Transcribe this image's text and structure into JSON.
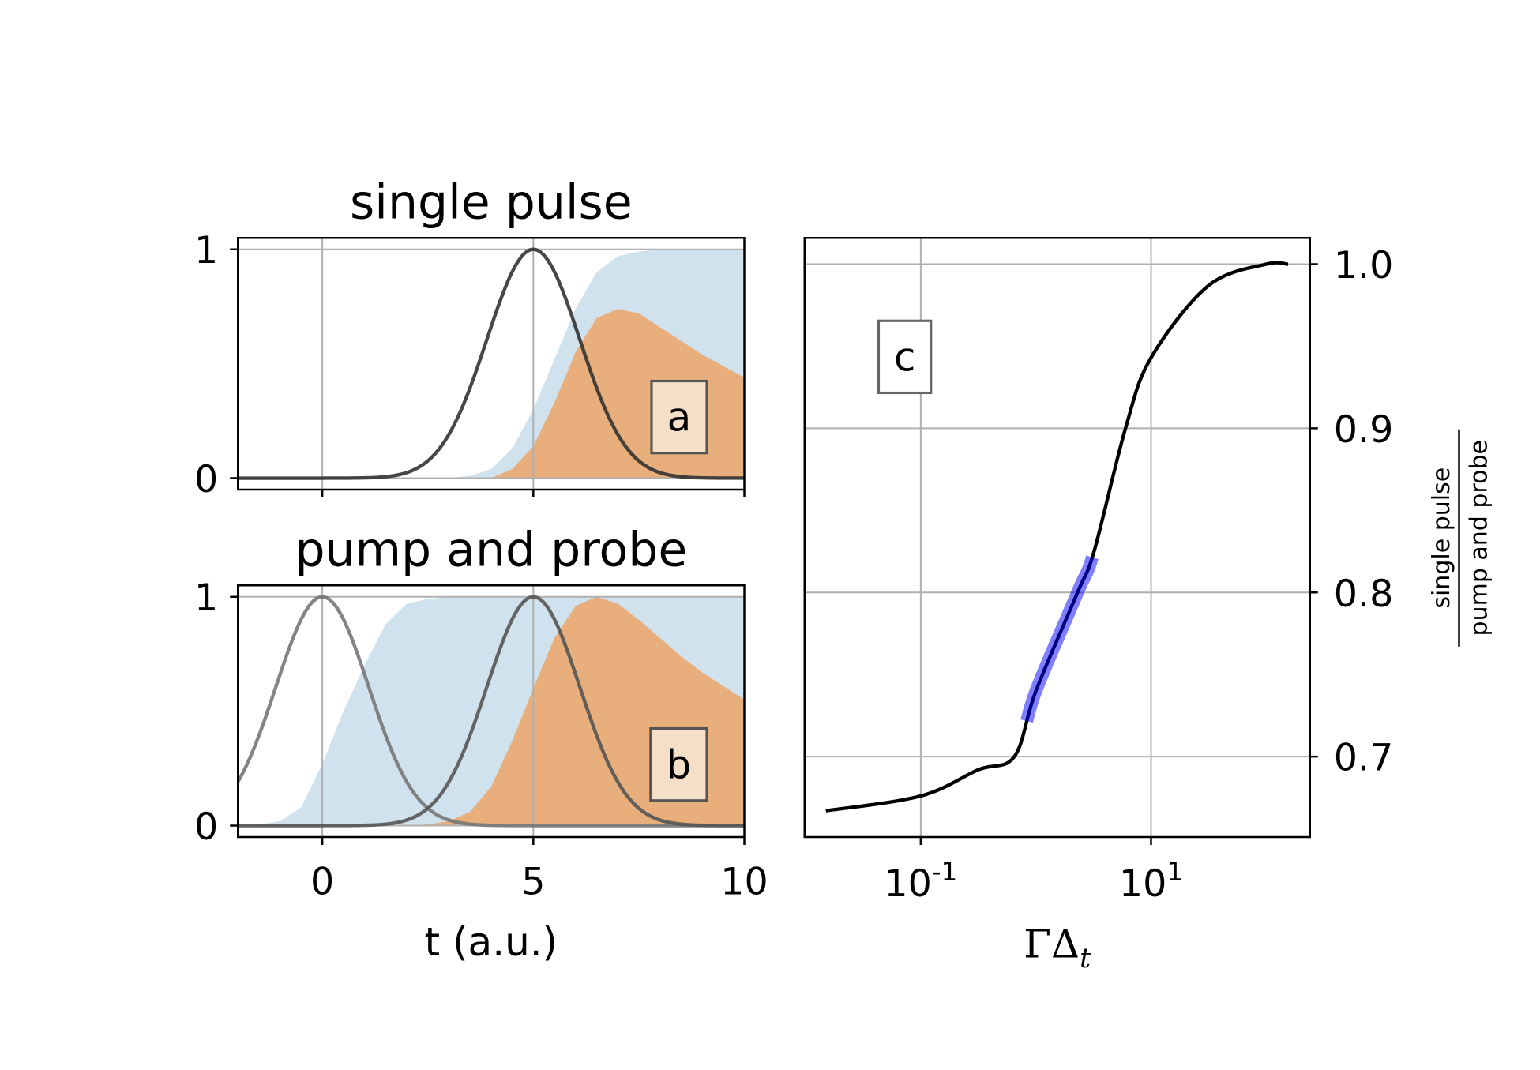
{
  "chart_data": [
    {
      "panel": "a",
      "type": "area",
      "title": "single pulse",
      "xlabel": "",
      "xlim": [
        -2,
        10
      ],
      "ylim": [
        -0.05,
        1.05
      ],
      "xticks": [
        "0",
        "5",
        "10"
      ],
      "xtick_values": [
        0,
        5,
        10
      ],
      "show_xticklabels": false,
      "yticks": [
        "0",
        "1"
      ],
      "ytick_values": [
        0,
        1
      ],
      "grid": true,
      "label_box": "a",
      "t": [
        -2,
        -1.5,
        -1,
        -0.5,
        0,
        0.5,
        1,
        1.5,
        2,
        2.5,
        3,
        3.5,
        4,
        4.5,
        5,
        5.5,
        6,
        6.5,
        7,
        7.5,
        8,
        8.5,
        9,
        9.5,
        10
      ],
      "series": [
        {
          "kind": "fill",
          "color": "#b9d3e6",
          "values": [
            0,
            0,
            0,
            0,
            0,
            0,
            0,
            0,
            0,
            0,
            0,
            0.01,
            0.04,
            0.13,
            0.3,
            0.52,
            0.74,
            0.9,
            0.97,
            0.99,
            1,
            1,
            1,
            1,
            1
          ]
        },
        {
          "kind": "fill",
          "color": "#e8ae7b",
          "values": [
            0,
            0,
            0,
            0,
            0,
            0,
            0,
            0,
            0,
            0,
            0,
            0,
            0,
            0.04,
            0.14,
            0.33,
            0.55,
            0.7,
            0.74,
            0.72,
            0.66,
            0.6,
            0.54,
            0.49,
            0.44
          ]
        }
      ],
      "pulses": [
        {
          "center": 5,
          "sigma": 1.1,
          "color": "#333333"
        }
      ]
    },
    {
      "panel": "b",
      "type": "area",
      "title": "pump and probe",
      "xlabel": "t (a.u.)",
      "xlim": [
        -2,
        10
      ],
      "ylim": [
        -0.05,
        1.05
      ],
      "xticks": [
        "0",
        "5",
        "10"
      ],
      "xtick_values": [
        0,
        5,
        10
      ],
      "show_xticklabels": true,
      "yticks": [
        "0",
        "1"
      ],
      "ytick_values": [
        0,
        1
      ],
      "grid": true,
      "label_box": "b",
      "t": [
        -2,
        -1.5,
        -1,
        -0.5,
        0,
        0.5,
        1,
        1.5,
        2,
        2.5,
        3,
        3.5,
        4,
        4.5,
        5,
        5.5,
        6,
        6.5,
        7,
        7.5,
        8,
        8.5,
        9,
        9.5,
        10
      ],
      "series": [
        {
          "kind": "fill",
          "color": "#b9d3e6",
          "values": [
            0,
            0.005,
            0.02,
            0.08,
            0.27,
            0.5,
            0.7,
            0.88,
            0.97,
            0.99,
            1,
            1,
            1,
            1,
            1,
            1,
            1,
            1,
            1,
            1,
            1,
            1,
            1,
            1,
            1
          ]
        },
        {
          "kind": "fill",
          "color": "#e8ae7b",
          "values": [
            0,
            0,
            0,
            0,
            0,
            0,
            0,
            0,
            0,
            0.005,
            0.02,
            0.06,
            0.17,
            0.37,
            0.6,
            0.82,
            0.96,
            1.0,
            0.97,
            0.9,
            0.82,
            0.74,
            0.67,
            0.61,
            0.55
          ]
        }
      ],
      "pulses": [
        {
          "center": 0,
          "sigma": 1.1,
          "color": "#777777"
        },
        {
          "center": 5,
          "sigma": 1.1,
          "color": "#555555"
        }
      ]
    },
    {
      "panel": "c",
      "type": "line",
      "xlabel": "ΓΔ",
      "xlabel_sub": "t",
      "ylabel_numerator": "single pulse",
      "ylabel_denominator": "pump and probe",
      "xscale": "log",
      "xlim": [
        0.0098,
        240
      ],
      "ylim": [
        0.651,
        1.016
      ],
      "xticks": [
        {
          "base": "10",
          "exp": "-1",
          "value": 0.1
        },
        {
          "base": "10",
          "exp": "1",
          "value": 10
        }
      ],
      "yticks": [
        "0.7",
        "0.8",
        "0.9",
        "1.0"
      ],
      "ytick_values": [
        0.7,
        0.8,
        0.9,
        1.0
      ],
      "yaxis_side": "right",
      "grid": true,
      "label_box": "c",
      "series": [
        {
          "color": "#000000",
          "x": [
            0.015,
            0.1,
            0.316,
            0.65,
            1,
            2.3,
            3.2,
            6,
            10,
            31.6,
            100,
            155
          ],
          "y": [
            0.667,
            0.676,
            0.692,
            0.7,
            0.74,
            0.8,
            0.825,
            0.9,
            0.943,
            0.987,
            1.0,
            1.0
          ]
        }
      ],
      "highlight": {
        "color": "#0000ff",
        "opacity": 0.5,
        "x_range": [
          0.83,
          3.1
        ]
      }
    }
  ]
}
